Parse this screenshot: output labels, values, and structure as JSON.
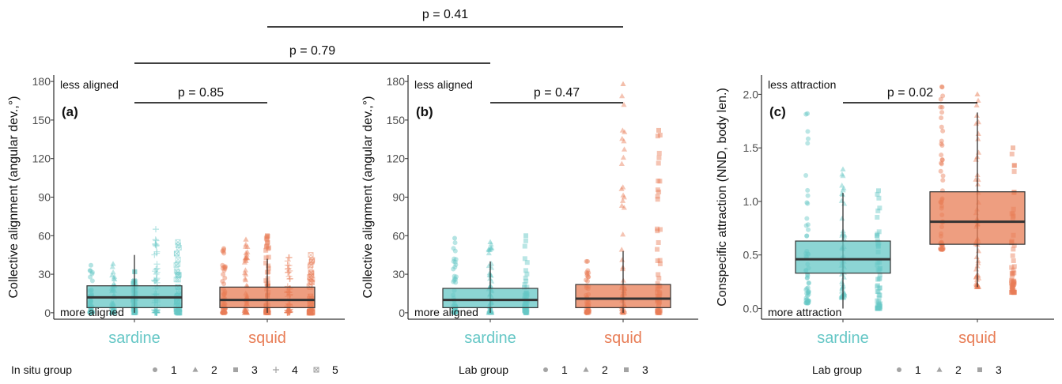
{
  "chart_data": [
    {
      "type": "box",
      "panel_label": "(a)",
      "ylabel": "Collective alignment (angular dev.,°)",
      "yticks": [
        "0",
        "30",
        "60",
        "90",
        "120",
        "150",
        "180"
      ],
      "ylim": [
        -5,
        185
      ],
      "categories": [
        "sardine",
        "squid"
      ],
      "category_colors": [
        "#66C7C6",
        "#E87D56"
      ],
      "annotations": {
        "top": "less aligned",
        "bottom": "more aligned"
      },
      "boxes": [
        {
          "category": "sardine",
          "q1": 4,
          "median": 12,
          "q3": 21,
          "whisker_low": 0,
          "whisker_high": 45
        },
        {
          "category": "squid",
          "q1": 4,
          "median": 10,
          "q3": 20,
          "whisker_low": 0,
          "whisker_high": 42
        }
      ],
      "groups": [
        {
          "category": "sardine",
          "group": "1",
          "min": 0,
          "max": 37
        },
        {
          "category": "sardine",
          "group": "2",
          "min": 0,
          "max": 38
        },
        {
          "category": "sardine",
          "group": "3",
          "min": 0,
          "max": 32
        },
        {
          "category": "sardine",
          "group": "4",
          "min": 0,
          "max": 65
        },
        {
          "category": "sardine",
          "group": "5",
          "min": 0,
          "max": 55
        },
        {
          "category": "squid",
          "group": "1",
          "min": 0,
          "max": 50
        },
        {
          "category": "squid",
          "group": "2",
          "min": 0,
          "max": 57
        },
        {
          "category": "squid",
          "group": "3",
          "min": 0,
          "max": 60
        },
        {
          "category": "squid",
          "group": "4",
          "min": 0,
          "max": 43
        },
        {
          "category": "squid",
          "group": "5",
          "min": 0,
          "max": 45
        }
      ],
      "legend": {
        "title": "In situ group",
        "entries": [
          "1",
          "2",
          "3",
          "4",
          "5"
        ]
      },
      "comparisons": [
        {
          "label": "p = 0.85",
          "between": [
            "sardine",
            "squid"
          ]
        }
      ]
    },
    {
      "type": "box",
      "panel_label": "(b)",
      "ylabel": "Collective alignment (angular dev.,°)",
      "yticks": [
        "0",
        "30",
        "60",
        "90",
        "120",
        "150",
        "180"
      ],
      "ylim": [
        -5,
        185
      ],
      "categories": [
        "sardine",
        "squid"
      ],
      "category_colors": [
        "#66C7C6",
        "#E87D56"
      ],
      "annotations": {
        "top": "less aligned",
        "bottom": "more aligned"
      },
      "boxes": [
        {
          "category": "sardine",
          "q1": 4,
          "median": 10,
          "q3": 19,
          "whisker_low": 0,
          "whisker_high": 40
        },
        {
          "category": "squid",
          "q1": 4,
          "median": 11,
          "q3": 22,
          "whisker_low": 0,
          "whisker_high": 48
        }
      ],
      "groups": [
        {
          "category": "sardine",
          "group": "1",
          "min": 0,
          "max": 58
        },
        {
          "category": "sardine",
          "group": "2",
          "min": 0,
          "max": 55
        },
        {
          "category": "sardine",
          "group": "3",
          "min": 0,
          "max": 60
        },
        {
          "category": "squid",
          "group": "1",
          "min": 0,
          "max": 40
        },
        {
          "category": "squid",
          "group": "2",
          "min": 0,
          "max": 178
        },
        {
          "category": "squid",
          "group": "3",
          "min": 0,
          "max": 142
        }
      ],
      "legend": {
        "title": "Lab group",
        "entries": [
          "1",
          "2",
          "3"
        ]
      },
      "comparisons": [
        {
          "label": "p = 0.47",
          "between": [
            "sardine",
            "squid"
          ]
        }
      ]
    },
    {
      "type": "box",
      "panel_label": "(c)",
      "ylabel": "Conspecific attraction (NND, body len.)",
      "yticks": [
        "0.0",
        "0.5",
        "1.0",
        "1.5",
        "2.0"
      ],
      "ylim": [
        -0.1,
        2.18
      ],
      "categories": [
        "sardine",
        "squid"
      ],
      "category_colors": [
        "#66C7C6",
        "#E87D56"
      ],
      "annotations": {
        "top": "less attraction",
        "bottom": "more attraction"
      },
      "boxes": [
        {
          "category": "sardine",
          "q1": 0.33,
          "median": 0.46,
          "q3": 0.63,
          "whisker_low": 0.0,
          "whisker_high": 1.08
        },
        {
          "category": "squid",
          "q1": 0.6,
          "median": 0.81,
          "q3": 1.09,
          "whisker_low": 0.2,
          "whisker_high": 1.83
        }
      ],
      "groups": [
        {
          "category": "sardine",
          "group": "1",
          "min": 0.05,
          "max": 1.82
        },
        {
          "category": "sardine",
          "group": "2",
          "min": 0.1,
          "max": 1.3
        },
        {
          "category": "sardine",
          "group": "3",
          "min": 0.0,
          "max": 1.1
        },
        {
          "category": "squid",
          "group": "1",
          "min": 0.55,
          "max": 2.07
        },
        {
          "category": "squid",
          "group": "2",
          "min": 0.2,
          "max": 2.0
        },
        {
          "category": "squid",
          "group": "3",
          "min": 0.15,
          "max": 1.5
        }
      ],
      "legend": {
        "title": "Lab group",
        "entries": [
          "1",
          "2",
          "3"
        ]
      },
      "comparisons": [
        {
          "label": "p = 0.02",
          "between": [
            "sardine",
            "squid"
          ]
        }
      ]
    }
  ],
  "cross_comparisons": [
    {
      "label": "p = 0.41",
      "between": [
        "(a) squid",
        "(b) squid"
      ]
    },
    {
      "label": "p = 0.79",
      "between": [
        "(a) sardine",
        "(b) sardine"
      ]
    }
  ]
}
